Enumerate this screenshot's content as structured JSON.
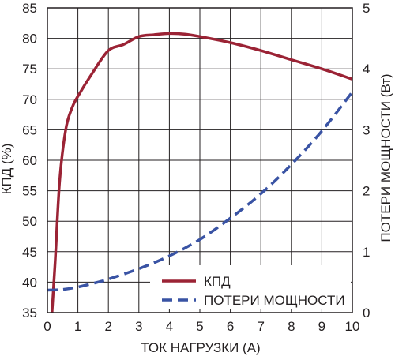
{
  "chart_data": {
    "type": "line",
    "xlabel": "ТОК НАГРУЗКИ (A)",
    "ylabel_left": "КПД (%)",
    "ylabel_right": "ПОТЕРИ МОЩНОСТИ (Вт)",
    "xlim": [
      0,
      10
    ],
    "ylim_left": [
      35,
      85
    ],
    "ylim_right": [
      0,
      5
    ],
    "x_ticks": [
      0,
      1,
      2,
      3,
      4,
      5,
      6,
      7,
      8,
      9,
      10
    ],
    "y_ticks_left": [
      35,
      40,
      45,
      50,
      55,
      60,
      65,
      70,
      75,
      80,
      85
    ],
    "y_ticks_right": [
      0,
      1,
      2,
      3,
      4,
      5
    ],
    "grid": true,
    "legend_position": "bottom-right",
    "series": [
      {
        "name": "КПД",
        "axis": "left",
        "color": "#9b2335",
        "dash": "solid",
        "x": [
          0.15,
          0.25,
          0.4,
          0.6,
          0.8,
          1.0,
          1.5,
          2.0,
          2.5,
          3.0,
          3.5,
          4.0,
          4.5,
          5.0,
          6.0,
          7.0,
          8.0,
          9.0,
          10.0
        ],
        "y": [
          35.0,
          43.0,
          56.5,
          65.0,
          68.5,
          70.5,
          74.5,
          78.0,
          79.0,
          80.3,
          80.6,
          80.8,
          80.7,
          80.3,
          79.3,
          78.0,
          76.5,
          75.0,
          73.3
        ]
      },
      {
        "name": "ПОТЕРИ МОЩНОСТИ",
        "axis": "right",
        "color": "#3953a4",
        "dash": "dashed",
        "x": [
          0,
          0.5,
          1,
          1.5,
          2,
          3,
          4,
          5,
          6,
          7,
          8,
          9,
          10
        ],
        "y": [
          0.37,
          0.38,
          0.42,
          0.48,
          0.55,
          0.72,
          0.93,
          1.2,
          1.55,
          1.95,
          2.43,
          2.98,
          3.62
        ]
      }
    ]
  }
}
